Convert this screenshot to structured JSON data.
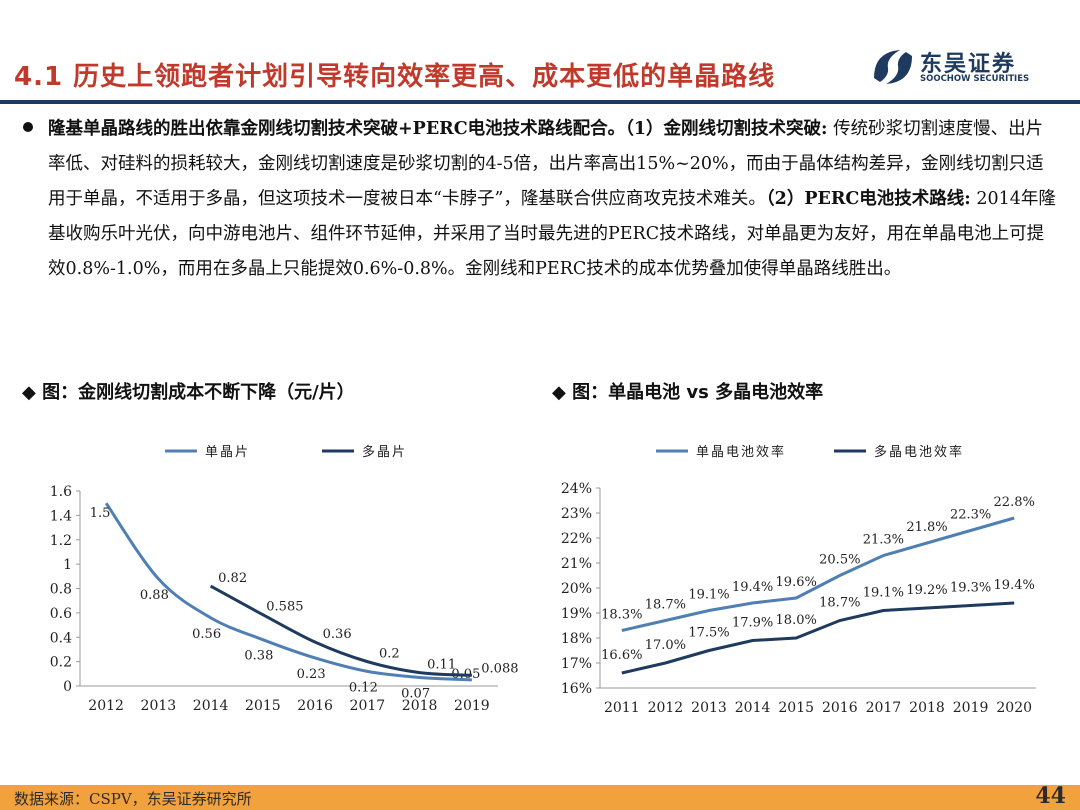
{
  "header": {
    "title": "4.1 历史上领跑者计划引导转向效率更高、成本更低的单晶路线",
    "logo_name": "东吴证券",
    "logo_sub": "SOOCHOW SECURITIES"
  },
  "paragraph": {
    "s1": "隆基单晶路线的胜出依靠金刚线切割技术突破+PERC电池技术路线配合。（1）金刚线切割技术突破:",
    "s2": " 传统砂浆切割速度慢、出片率低、对硅料的损耗较大，金刚线切割速度是砂浆切割的4-5倍，出片率高出15%~20%，而由于晶体结构差异，金刚线切割只适用于单晶，不适用于多晶，但这项技术一度被日本“卡脖子”，隆基联合供应商攻克技术难关。",
    "s3": "（2）PERC电池技术路线:",
    "s4": " 2014年隆基收购乐叶光伏，向中游电池片、组件环节延伸，并采用了当时最先进的PERC技术路线，对单晶更为友好，用在单晶电池上可提效0.8%-1.0%，而用在多晶上只能提效0.6%-0.8%。金刚线和PERC技术的成本优势叠加使得单晶路线胜出。"
  },
  "chart1_title": "◆ 图：金刚线切割成本不断下降（元/片）",
  "chart2_title": "◆ 图：单晶电池 vs 多晶电池效率",
  "chart_data": [
    {
      "type": "line",
      "title": "图：金刚线切割成本不断下降（元/片）",
      "categories": [
        "2012",
        "2013",
        "2014",
        "2015",
        "2016",
        "2017",
        "2018",
        "2019"
      ],
      "series": [
        {
          "name": "单晶片",
          "color": "#4f7fb3",
          "values": [
            1.5,
            0.88,
            0.56,
            0.38,
            0.23,
            0.12,
            0.07,
            0.05
          ],
          "labels": [
            "1.5",
            "0.88",
            "0.56",
            "0.38",
            "0.23",
            "0.12",
            "0.07",
            "0.05"
          ]
        },
        {
          "name": "多晶片",
          "color": "#1f3a5f",
          "values": [
            null,
            null,
            0.82,
            0.585,
            0.36,
            0.2,
            0.11,
            0.088
          ],
          "labels": [
            "",
            "",
            "0.82",
            "0.585",
            "0.36",
            "0.2",
            "0.11",
            "0.088"
          ]
        }
      ],
      "yticks": [
        "0",
        "0.2",
        "0.4",
        "0.6",
        "0.8",
        "1",
        "1.2",
        "1.4",
        "1.6"
      ],
      "ylim": [
        0,
        1.6
      ]
    },
    {
      "type": "line",
      "title": "图：单晶电池 vs 多晶电池效率",
      "categories": [
        "2011",
        "2012",
        "2013",
        "2014",
        "2015",
        "2016",
        "2017",
        "2018",
        "2019",
        "2020"
      ],
      "series": [
        {
          "name": "单晶电池效率",
          "color": "#4f7fb3",
          "values": [
            18.3,
            18.7,
            19.1,
            19.4,
            19.6,
            20.5,
            21.3,
            21.8,
            22.3,
            22.8
          ],
          "labels": [
            "18.3%",
            "18.7%",
            "19.1%",
            "19.4%",
            "19.6%",
            "20.5%",
            "21.3%",
            "21.8%",
            "22.3%",
            "22.8%"
          ]
        },
        {
          "name": "多晶电池效率",
          "color": "#1f3a5f",
          "values": [
            16.6,
            17.0,
            17.5,
            17.9,
            18.0,
            18.7,
            19.1,
            19.2,
            19.3,
            19.4
          ],
          "labels": [
            "16.6%",
            "17.0%",
            "17.5%",
            "17.9%",
            "18.0%",
            "18.7%",
            "19.1%",
            "19.2%",
            "19.3%",
            "19.4%"
          ]
        }
      ],
      "yticks": [
        "16%",
        "17%",
        "18%",
        "19%",
        "20%",
        "21%",
        "22%",
        "23%",
        "24%"
      ],
      "ylim": [
        16,
        24
      ]
    }
  ],
  "footer": {
    "source": "数据来源：CSPV，东吴证券研究所",
    "page": "44"
  }
}
